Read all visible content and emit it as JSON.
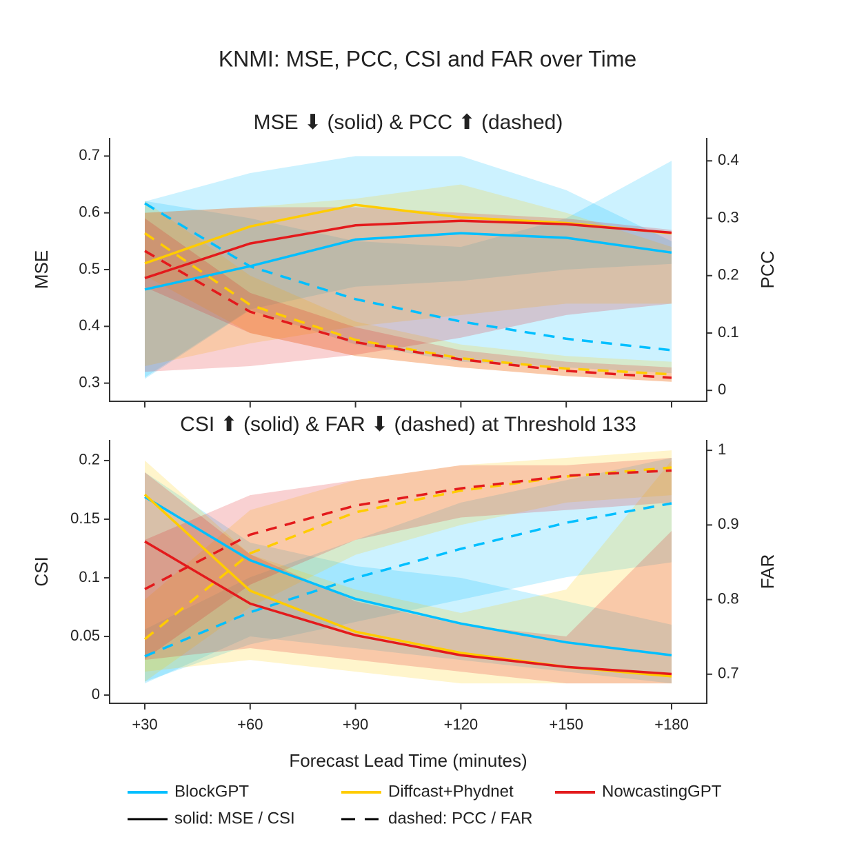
{
  "title": "KNMI: MSE, PCC, CSI and FAR over Time",
  "x_label": "Forecast Lead Time (minutes)",
  "categories": [
    "+30",
    "+60",
    "+90",
    "+120",
    "+150",
    "+180"
  ],
  "styles": [
    "solid: MSE / CSI",
    "dashed: PCC / FAR"
  ],
  "chart_data": [
    {
      "type": "line",
      "title": "MSE ⬇ (solid) & PCC ⬆ (dashed)",
      "ylabel": "MSE",
      "y2label": "PCC",
      "ylim": [
        0.268,
        0.732
      ],
      "yticks": [
        0.3,
        0.4,
        0.5,
        0.6,
        0.7
      ],
      "y2lim": [
        -0.019,
        0.44
      ],
      "y2ticks": [
        0,
        0.1,
        0.2,
        0.3,
        0.4
      ],
      "series": [
        {
          "name": "BlockGPT",
          "color": "#00bfff",
          "values": [
            0.465,
            0.506,
            0.553,
            0.564,
            0.556,
            0.53
          ],
          "lower": [
            0.31,
            0.43,
            0.47,
            0.48,
            0.5,
            0.51
          ],
          "upper": [
            0.62,
            0.67,
            0.7,
            0.7,
            0.64,
            0.55
          ],
          "y2_values": [
            0.326,
            0.216,
            0.159,
            0.12,
            0.09,
            0.07
          ],
          "y2_lower": [
            0.02,
            0.14,
            0.08,
            0.05,
            0.04,
            0.03
          ],
          "y2_upper": [
            0.33,
            0.3,
            0.26,
            0.25,
            0.3,
            0.4
          ]
        },
        {
          "name": "Diffcast+Phydnet",
          "color": "#ffcc00",
          "values": [
            0.511,
            0.576,
            0.614,
            0.592,
            0.582,
            0.564
          ],
          "lower": [
            0.33,
            0.37,
            0.4,
            0.42,
            0.44,
            0.44
          ],
          "upper": [
            0.6,
            0.61,
            0.625,
            0.65,
            0.6,
            0.54
          ],
          "y2_values": [
            0.274,
            0.149,
            0.088,
            0.056,
            0.038,
            0.028
          ],
          "y2_lower": [
            0.2,
            0.1,
            0.06,
            0.04,
            0.025,
            0.015
          ],
          "y2_upper": [
            0.33,
            0.2,
            0.12,
            0.08,
            0.06,
            0.05
          ]
        },
        {
          "name": "NowcastingGPT",
          "color": "#e31a1c",
          "values": [
            0.485,
            0.546,
            0.578,
            0.586,
            0.58,
            0.565
          ],
          "lower": [
            0.32,
            0.33,
            0.35,
            0.38,
            0.42,
            0.44
          ],
          "upper": [
            0.6,
            0.61,
            0.61,
            0.6,
            0.59,
            0.57
          ],
          "y2_values": [
            0.243,
            0.137,
            0.084,
            0.054,
            0.034,
            0.022
          ],
          "y2_lower": [
            0.18,
            0.1,
            0.06,
            0.04,
            0.025,
            0.015
          ],
          "y2_upper": [
            0.3,
            0.17,
            0.11,
            0.07,
            0.05,
            0.04
          ]
        }
      ]
    },
    {
      "type": "line",
      "title": "CSI ⬆ (solid) & FAR ⬇ (dashed) at Threshold 133",
      "ylabel": "CSI",
      "y2label": "FAR",
      "ylim": [
        -0.007,
        0.2176
      ],
      "yticks": [
        0,
        0.05,
        0.1,
        0.15,
        0.2
      ],
      "y2lim": [
        0.661,
        1.014
      ],
      "y2ticks": [
        0.7,
        0.8,
        0.9,
        1
      ],
      "series": [
        {
          "values": [
            0.169,
            0.115,
            0.082,
            0.061,
            0.045,
            0.034
          ],
          "lower": [
            0.01,
            0.05,
            0.04,
            0.03,
            0.02,
            0.01
          ],
          "upper": [
            0.19,
            0.13,
            0.11,
            0.1,
            0.08,
            0.06
          ],
          "y2_values": [
            0.724,
            0.783,
            0.829,
            0.868,
            0.903,
            0.929
          ],
          "y2_lower": [
            0.69,
            0.74,
            0.77,
            0.8,
            0.83,
            0.85
          ],
          "y2_upper": [
            0.76,
            0.83,
            0.88,
            0.93,
            0.96,
            0.99
          ]
        },
        {
          "values": [
            0.171,
            0.089,
            0.054,
            0.036,
            0.024,
            0.016
          ],
          "lower": [
            0.02,
            0.03,
            0.02,
            0.01,
            0.01,
            0.01
          ],
          "upper": [
            0.2,
            0.12,
            0.09,
            0.07,
            0.09,
            0.2
          ],
          "y2_values": [
            0.747,
            0.862,
            0.917,
            0.946,
            0.965,
            0.977
          ],
          "y2_lower": [
            0.69,
            0.79,
            0.86,
            0.9,
            0.93,
            0.94
          ],
          "y2_upper": [
            0.8,
            0.92,
            0.96,
            0.98,
            0.99,
            1
          ]
        },
        {
          "values": [
            0.131,
            0.078,
            0.051,
            0.034,
            0.024,
            0.018
          ],
          "lower": [
            0.03,
            0.04,
            0.03,
            0.02,
            0.01,
            0.01
          ],
          "upper": [
            0.19,
            0.12,
            0.08,
            0.06,
            0.05,
            0.14
          ],
          "y2_values": [
            0.814,
            0.887,
            0.926,
            0.949,
            0.966,
            0.973
          ],
          "y2_lower": [
            0.72,
            0.82,
            0.88,
            0.91,
            0.92,
            0.93
          ],
          "y2_upper": [
            0.88,
            0.94,
            0.96,
            0.98,
            0.98,
            0.99
          ]
        }
      ]
    }
  ]
}
